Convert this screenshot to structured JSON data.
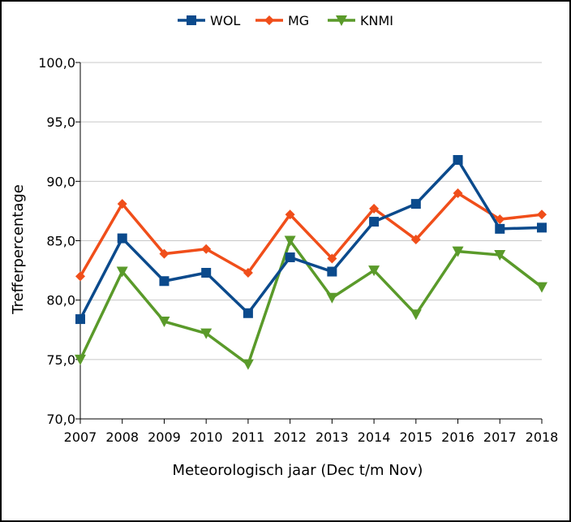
{
  "chart_data": {
    "type": "line",
    "xlabel": "Meteorologisch jaar (Dec t/m Nov)",
    "ylabel": "Trefferpercentage",
    "categories": [
      "2007",
      "2008",
      "2009",
      "2010",
      "2011",
      "2012",
      "2013",
      "2014",
      "2015",
      "2016",
      "2017",
      "2018"
    ],
    "ylim": [
      70,
      100
    ],
    "yticks": [
      70,
      75,
      80,
      85,
      90,
      95,
      100
    ],
    "ytick_labels": [
      "70,0",
      "75,0",
      "80,0",
      "85,0",
      "90,0",
      "95,0",
      "100,0"
    ],
    "grid": "horizontal",
    "legend_position": "top-center",
    "series": [
      {
        "name": "WOL",
        "color": "#0b4a8c",
        "marker": "square",
        "values": [
          78.4,
          85.2,
          81.6,
          82.3,
          78.9,
          83.6,
          82.4,
          86.6,
          88.1,
          91.8,
          86.0,
          86.1
        ]
      },
      {
        "name": "MG",
        "color": "#f04e1a",
        "marker": "diamond",
        "values": [
          82.0,
          88.1,
          83.9,
          84.3,
          82.3,
          87.2,
          83.5,
          87.7,
          85.1,
          89.0,
          86.8,
          87.2
        ]
      },
      {
        "name": "KNMI",
        "color": "#5a9a2a",
        "marker": "triangle-down",
        "values": [
          75.0,
          82.4,
          78.2,
          77.2,
          74.6,
          85.0,
          80.2,
          82.5,
          78.8,
          84.1,
          83.8,
          81.1
        ]
      }
    ]
  }
}
